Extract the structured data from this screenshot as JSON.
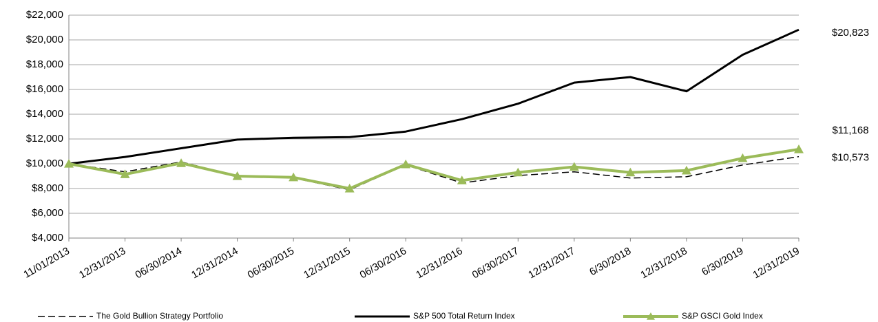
{
  "chart_data": {
    "type": "line",
    "categories": [
      "11/01/2013",
      "12/31/2013",
      "06/30/2014",
      "12/31/2014",
      "06/30/2015",
      "12/31/2015",
      "06/30/2016",
      "12/31/2016",
      "06/30/2017",
      "12/31/2017",
      "6/30/2018",
      "12/31/2018",
      "6/30/2019",
      "12/31/2019"
    ],
    "series": [
      {
        "name": "The Gold Bullion Strategy Portfolio",
        "color": "#000000",
        "line_style": "dashed",
        "marker": "none",
        "values": [
          10000,
          9350,
          10150,
          9000,
          8850,
          7900,
          9900,
          8450,
          9050,
          9350,
          8850,
          8950,
          9900,
          10573
        ],
        "value_labels": [
          null,
          null,
          null,
          null,
          null,
          null,
          null,
          null,
          null,
          null,
          null,
          null,
          null,
          "$10,573"
        ]
      },
      {
        "name": "S&P 500 Total Return Index",
        "color": "#000000",
        "line_style": "solid",
        "marker": "none",
        "values": [
          10000,
          10550,
          11250,
          11950,
          12100,
          12150,
          12600,
          13600,
          14850,
          16550,
          17000,
          15850,
          18800,
          20823
        ],
        "value_labels": [
          null,
          null,
          null,
          null,
          null,
          null,
          null,
          null,
          null,
          null,
          null,
          null,
          null,
          "$20,823"
        ]
      },
      {
        "name": "S&P GSCI Gold Index",
        "color": "#9bbb59",
        "line_style": "solid",
        "marker": "triangle",
        "values": [
          10000,
          9150,
          10050,
          9000,
          8900,
          8000,
          9950,
          8650,
          9300,
          9750,
          9300,
          9450,
          10450,
          11168
        ],
        "value_labels": [
          null,
          null,
          null,
          null,
          null,
          null,
          null,
          null,
          null,
          null,
          null,
          null,
          null,
          "$11,168"
        ]
      }
    ],
    "ylim": [
      4000,
      22000
    ],
    "yticks": [
      {
        "value": 4000,
        "label": "$4,000"
      },
      {
        "value": 6000,
        "label": "$6,000"
      },
      {
        "value": 8000,
        "label": "$8,000"
      },
      {
        "value": 10000,
        "label": "$10,000"
      },
      {
        "value": 12000,
        "label": "$12,000"
      },
      {
        "value": 14000,
        "label": "$14,000"
      },
      {
        "value": 16000,
        "label": "$16,000"
      },
      {
        "value": 18000,
        "label": "$18,000"
      },
      {
        "value": 20000,
        "label": "$20,000"
      },
      {
        "value": 22000,
        "label": "$22,000"
      }
    ],
    "grid": true,
    "legend": "bottom"
  }
}
